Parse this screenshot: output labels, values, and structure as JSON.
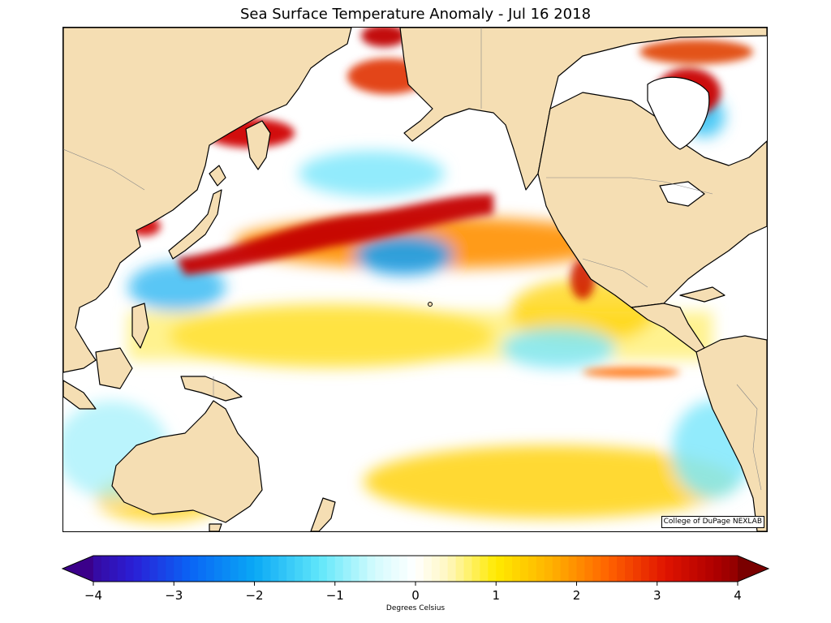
{
  "title": "Sea Surface Temperature Anomaly - Jul 16 2018",
  "credit": "College of DuPage NEXLAB",
  "colorbar": {
    "min": -4,
    "max": 4,
    "ticks": [
      "−4",
      "−3",
      "−2",
      "−1",
      "0",
      "1",
      "2",
      "3",
      "4"
    ],
    "tick_values": [
      -4,
      -3,
      -2,
      -1,
      0,
      1,
      2,
      3,
      4
    ],
    "label": "Degrees Celsius",
    "extend": "both",
    "stops": [
      {
        "v": -4.2,
        "color": "#3b008a"
      },
      {
        "v": -3.5,
        "color": "#2a1fd6"
      },
      {
        "v": -2.8,
        "color": "#0a64f5"
      },
      {
        "v": -2.0,
        "color": "#0aa8f5"
      },
      {
        "v": -1.2,
        "color": "#5fe6fa"
      },
      {
        "v": -0.5,
        "color": "#d4fbfd"
      },
      {
        "v": 0.0,
        "color": "#ffffff"
      },
      {
        "v": 0.4,
        "color": "#fff7c0"
      },
      {
        "v": 1.0,
        "color": "#ffea00"
      },
      {
        "v": 1.7,
        "color": "#ffb000"
      },
      {
        "v": 2.4,
        "color": "#ff6200"
      },
      {
        "v": 3.1,
        "color": "#e01400"
      },
      {
        "v": 3.7,
        "color": "#b00000"
      },
      {
        "v": 4.2,
        "color": "#7a0000"
      }
    ]
  },
  "map_colors": {
    "land": "#f5deb3",
    "coast": "#000000",
    "border": "#888888"
  }
}
